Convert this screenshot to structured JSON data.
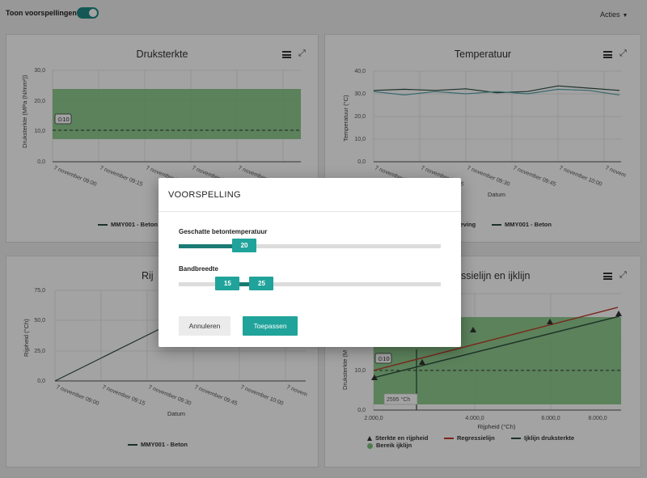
{
  "topbar": {
    "toggle_label": "Toon voorspellingen",
    "toggle_on": true,
    "actions_label": "Acties"
  },
  "colors": {
    "accent": "#20a39a",
    "band_green": "#7bc37b",
    "line_dark": "#2d4e3e",
    "line_teal": "#5aa6ad",
    "line_red": "#c0392b"
  },
  "panels": {
    "druksterkte": {
      "title": "Druksterkte",
      "ylabel": "Druksterkte (MPa (N/mm²))",
      "yticks": [
        "30,0",
        "20,0",
        "10,0",
        "0,0"
      ],
      "xticks": [
        "7 november 09:00",
        "7 november 09:15",
        "7 november 09:30",
        "7 november 09:45",
        "7 november 1"
      ],
      "badge": "10",
      "legend": "MMY001 - Beton"
    },
    "temperatuur": {
      "title": "Temperatuur",
      "ylabel": "Temperatuur (°C)",
      "yticks": [
        "40,0",
        "30,0",
        "20,0",
        "10,0",
        "0,0"
      ],
      "xticks": [
        "7 november 09:00",
        "7 november 09:15",
        "7 november 09:30",
        "7 november 09:45",
        "7 november 10:00",
        "7 novem"
      ],
      "xlabel": "Datum",
      "legend_a": "geving",
      "legend_b": "MMY001 - Beton"
    },
    "rijpheid": {
      "title": "Rij",
      "ylabel": "Rijpheid (°Ch)",
      "yticks": [
        "75,0",
        "50,0",
        "25,0",
        "0,0"
      ],
      "xticks": [
        "7 november 09:00",
        "7 november 09:15",
        "7 november 09:30",
        "7 november 09:45",
        "7 november 10:00",
        "7 novem"
      ],
      "xlabel": "Datum",
      "legend": "MMY001 - Beton"
    },
    "regressie": {
      "title": "ssielijn en ijklijn",
      "ylabel": "Druksterkte (M",
      "yticks": [
        "10,0",
        "0,0"
      ],
      "xticks": [
        "2.000,0",
        "4.000,0",
        "6.000,0",
        "8.000,0"
      ],
      "xlabel": "Rijpheid (°Ch)",
      "badge": "10",
      "marker_label": "2595 °Ch",
      "legend_points": "Sterkte en rijpheid",
      "legend_reg": "Regressielijn",
      "legend_ijk": "Ijklijn druksterkte",
      "legend_band": "Bereik ijklijn"
    }
  },
  "chart_data": [
    {
      "type": "line",
      "title": "Druksterkte",
      "ylabel": "Druksterkte (MPa (N/mm²))",
      "ylim": [
        0,
        30
      ],
      "band": [
        7.5,
        23
      ],
      "reference_line": 10,
      "series": [
        {
          "name": "MMY001 - Beton",
          "x": [],
          "y": []
        }
      ]
    },
    {
      "type": "line",
      "title": "Temperatuur",
      "xlabel": "Datum",
      "ylabel": "Temperatuur (°C)",
      "ylim": [
        0,
        40
      ],
      "series": [
        {
          "name": "MMY001 - Beton",
          "values": [
            31.5,
            32,
            31.5,
            32.2,
            30.5,
            31,
            33.5,
            32.5,
            31.5
          ]
        },
        {
          "name": "geving",
          "values": [
            31,
            29.5,
            31,
            30,
            31,
            30,
            32,
            31.5,
            29.5
          ]
        }
      ]
    },
    {
      "type": "line",
      "xlabel": "Datum",
      "ylabel": "Rijpheid (°Ch)",
      "ylim": [
        0,
        75
      ],
      "series": [
        {
          "name": "MMY001 - Beton",
          "x": [
            0,
            0.5
          ],
          "y": [
            0,
            43
          ]
        }
      ]
    },
    {
      "type": "scatter",
      "xlabel": "Rijpheid (°Ch)",
      "xlim": [
        2000,
        8800
      ],
      "ylim": [
        0,
        30
      ],
      "points": [
        [
          2000,
          8
        ],
        [
          2600,
          11
        ],
        [
          3600,
          21
        ],
        [
          6000,
          25
        ],
        [
          8600,
          28
        ]
      ],
      "regression": [
        [
          2000,
          10
        ],
        [
          8600,
          29
        ]
      ],
      "ijklijn": [
        [
          2000,
          7.5
        ],
        [
          8600,
          27
        ]
      ],
      "band": [
        7,
        26
      ],
      "reference_line": 10,
      "marker_x": 2595
    }
  ],
  "modal": {
    "title": "VOORSPELLING",
    "slider1": {
      "label": "Geschatte betontemperatuur",
      "value": "20",
      "fraction": 0.21
    },
    "slider2": {
      "label": "Bandbreedte",
      "low": "15",
      "high": "25",
      "low_fraction": 0.14,
      "high_fraction": 0.27
    },
    "cancel_label": "Annuleren",
    "apply_label": "Toepassen"
  }
}
